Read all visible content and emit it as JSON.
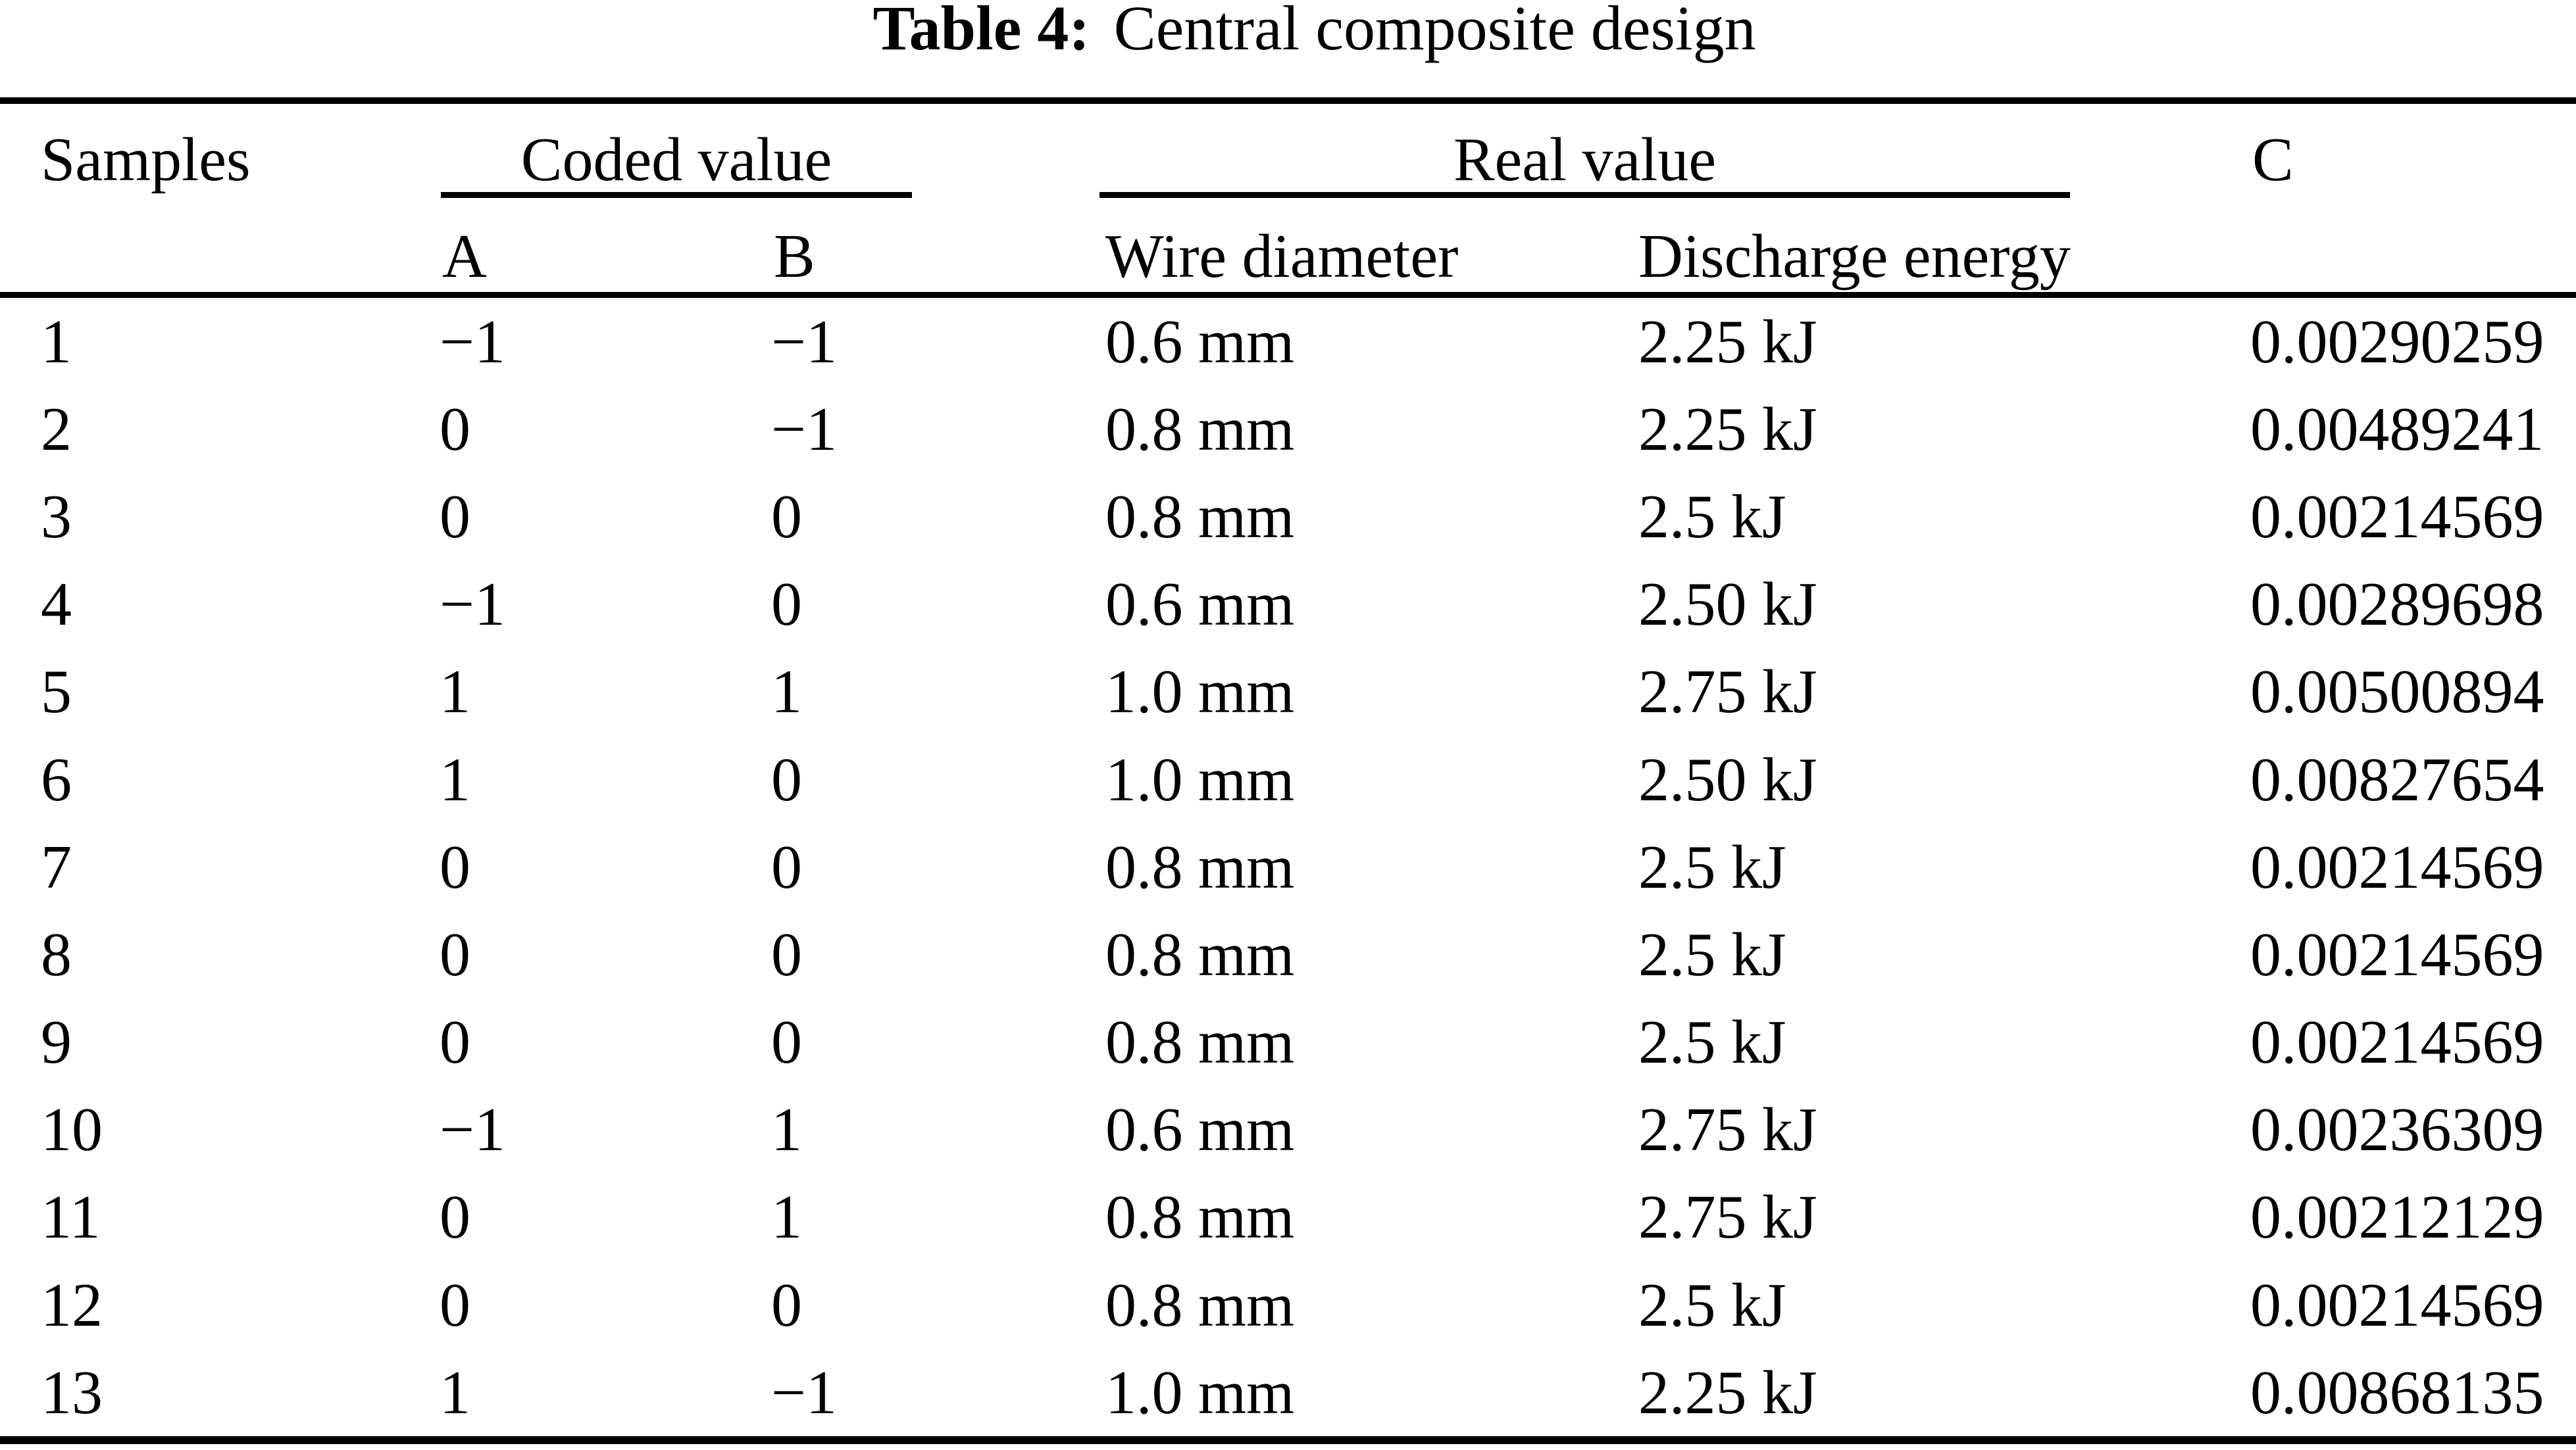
{
  "title": {
    "label": "Table 4:",
    "text": "Central composite design"
  },
  "table": {
    "headers": {
      "samples": "Samples",
      "coded_group": "Coded value",
      "real_group": "Real value",
      "c": "C",
      "a": "A",
      "b": "B",
      "wire_diameter": "Wire diameter",
      "discharge_energy": "Discharge energy"
    },
    "rows": [
      {
        "sample": "1",
        "a": "−1",
        "b": "−1",
        "wire": "0.6 mm",
        "energy": "2.25 kJ",
        "c": "0.00290259"
      },
      {
        "sample": "2",
        "a": "0",
        "b": "−1",
        "wire": "0.8 mm",
        "energy": "2.25 kJ",
        "c": "0.00489241"
      },
      {
        "sample": "3",
        "a": "0",
        "b": "0",
        "wire": "0.8 mm",
        "energy": "2.5 kJ",
        "c": "0.00214569"
      },
      {
        "sample": "4",
        "a": "−1",
        "b": "0",
        "wire": "0.6 mm",
        "energy": "2.50 kJ",
        "c": "0.00289698"
      },
      {
        "sample": "5",
        "a": "1",
        "b": "1",
        "wire": "1.0 mm",
        "energy": "2.75 kJ",
        "c": "0.00500894"
      },
      {
        "sample": "6",
        "a": "1",
        "b": "0",
        "wire": "1.0 mm",
        "energy": "2.50 kJ",
        "c": "0.00827654"
      },
      {
        "sample": "7",
        "a": "0",
        "b": "0",
        "wire": "0.8 mm",
        "energy": "2.5 kJ",
        "c": "0.00214569"
      },
      {
        "sample": "8",
        "a": "0",
        "b": "0",
        "wire": "0.8 mm",
        "energy": "2.5 kJ",
        "c": "0.00214569"
      },
      {
        "sample": "9",
        "a": "0",
        "b": "0",
        "wire": "0.8 mm",
        "energy": "2.5 kJ",
        "c": "0.00214569"
      },
      {
        "sample": "10",
        "a": "−1",
        "b": "1",
        "wire": "0.6 mm",
        "energy": "2.75 kJ",
        "c": "0.00236309"
      },
      {
        "sample": "11",
        "a": "0",
        "b": "1",
        "wire": "0.8 mm",
        "energy": "2.75 kJ",
        "c": "0.00212129"
      },
      {
        "sample": "12",
        "a": "0",
        "b": "0",
        "wire": "0.8 mm",
        "energy": "2.5 kJ",
        "c": "0.00214569"
      },
      {
        "sample": "13",
        "a": "1",
        "b": "−1",
        "wire": "1.0 mm",
        "energy": "2.25 kJ",
        "c": "0.00868135"
      }
    ]
  },
  "colors": {
    "text": "#000000",
    "background": "#ffffff",
    "rule": "#000000"
  }
}
